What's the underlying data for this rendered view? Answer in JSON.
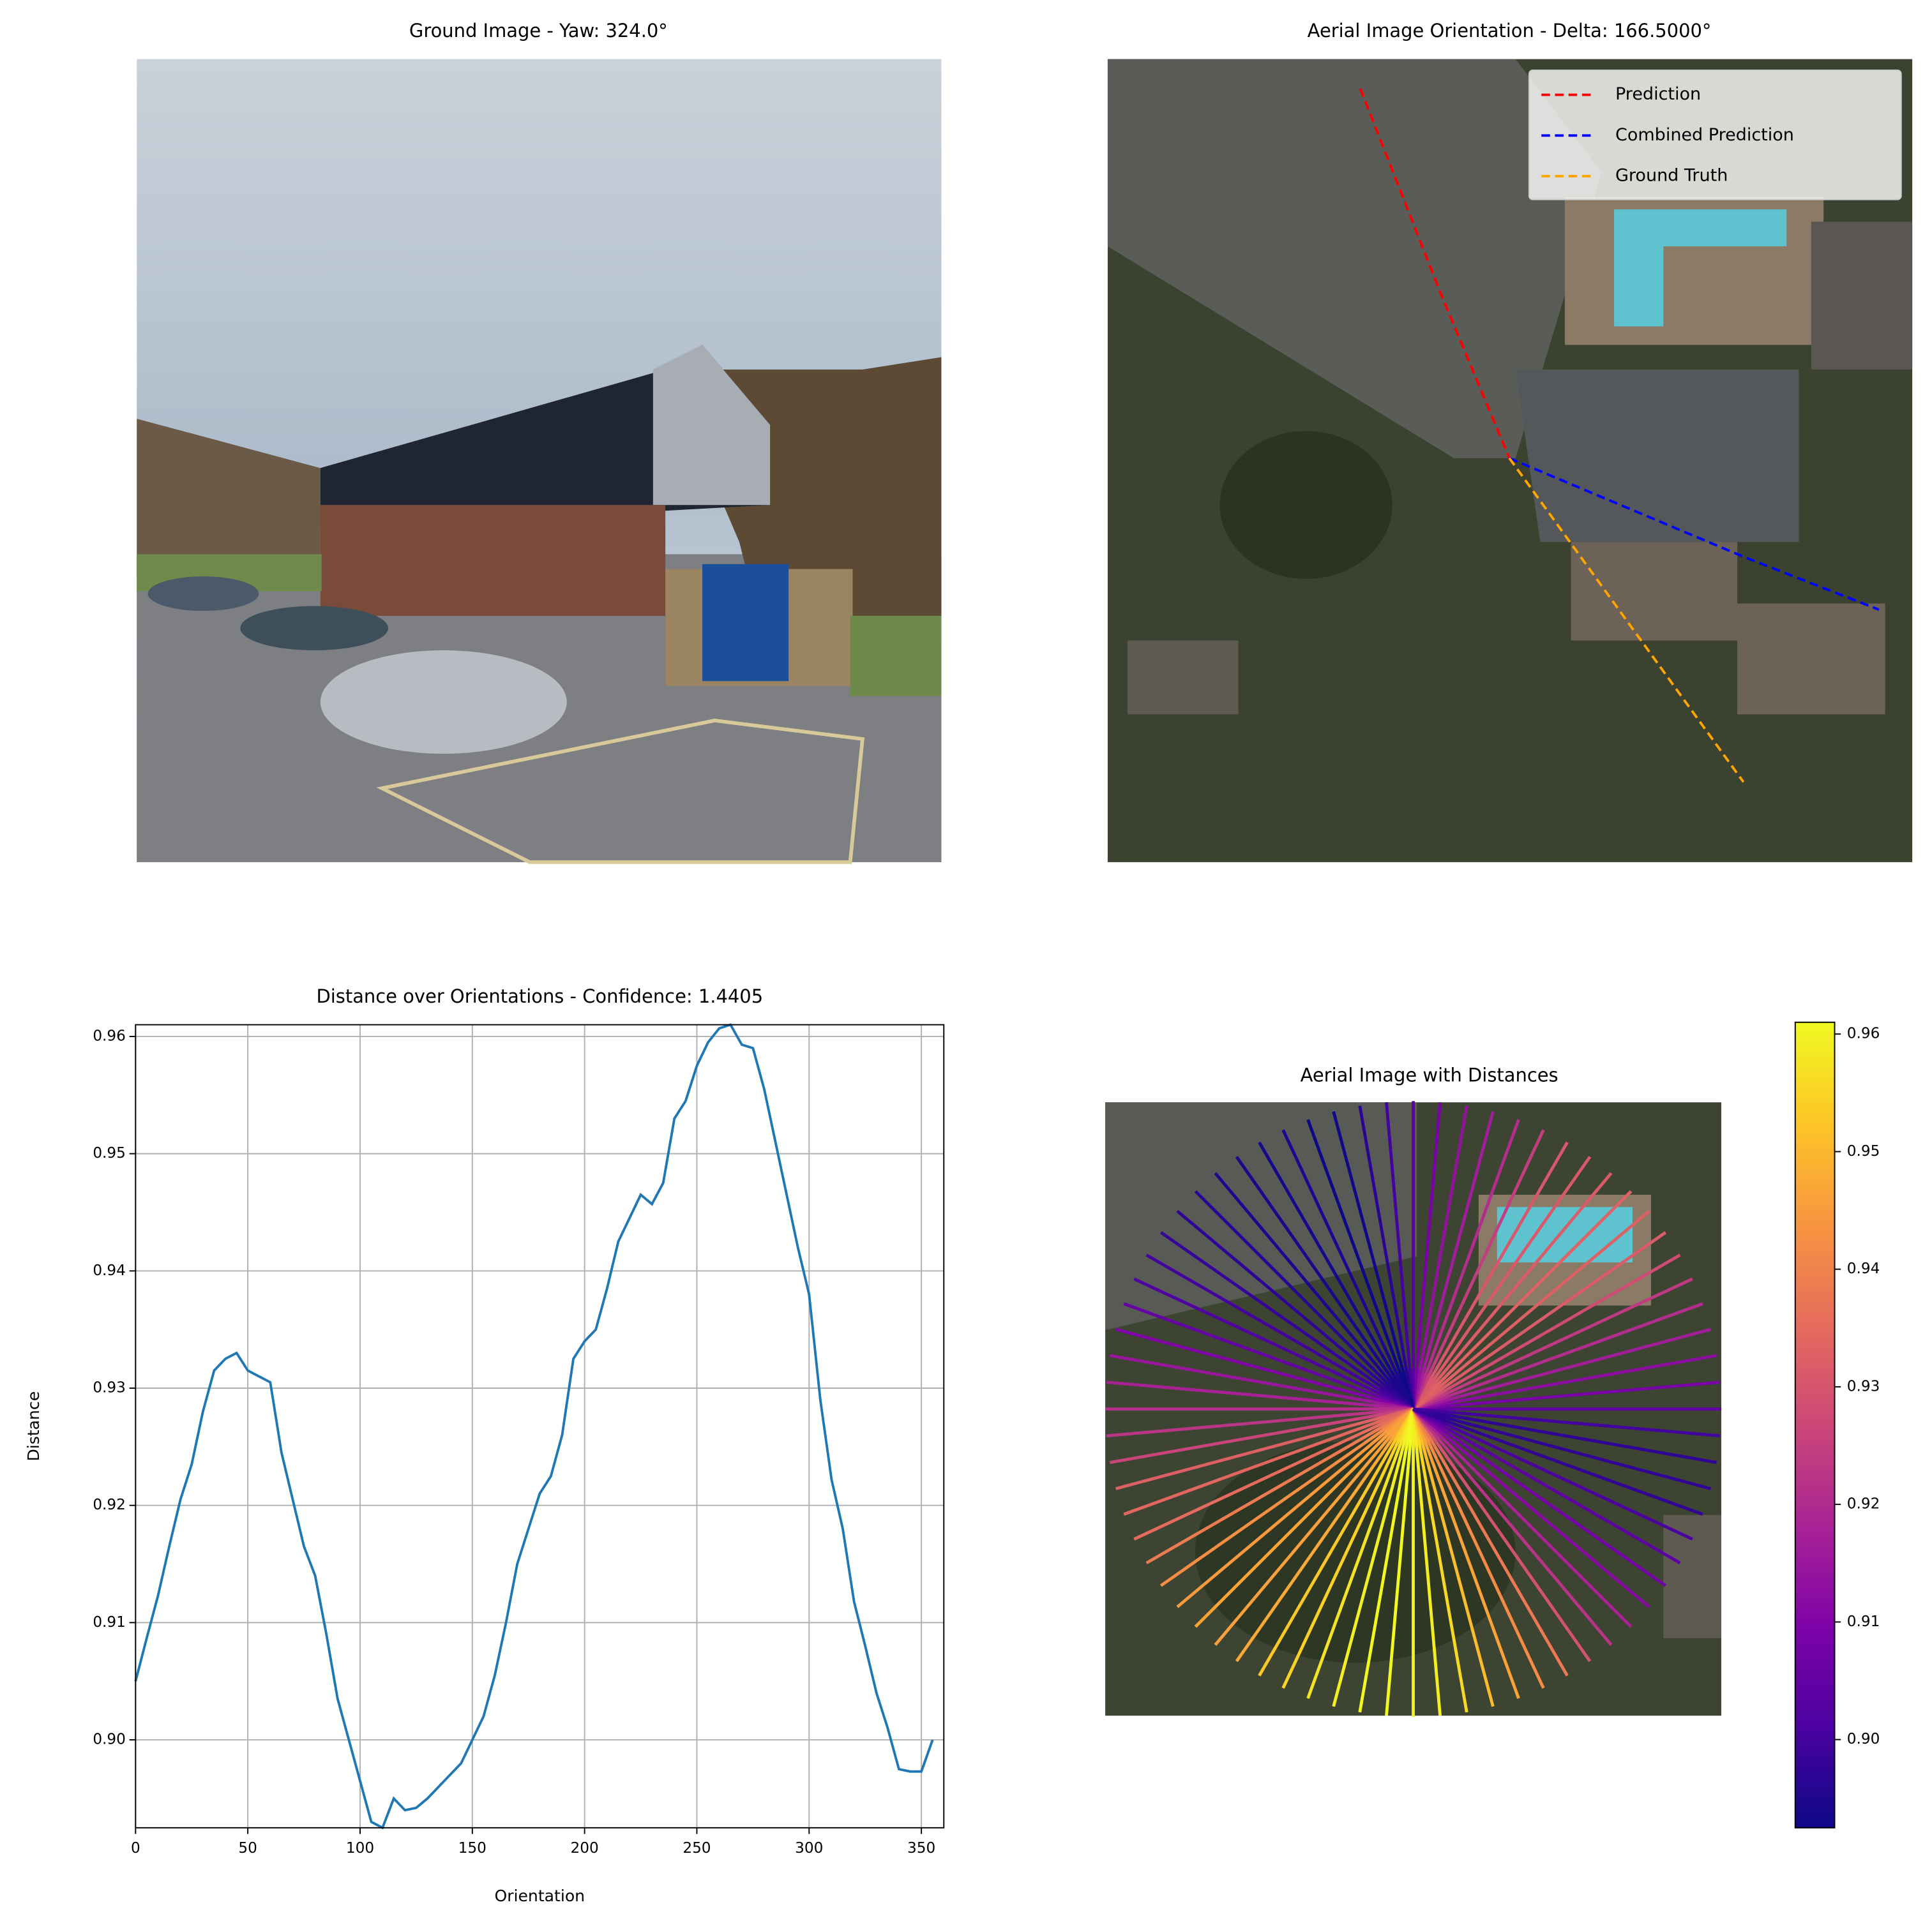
{
  "chart_data": [
    {
      "type": "image",
      "title": "Ground Image - Yaw: 324.0°"
    },
    {
      "type": "image",
      "title": "Aerial Image Orientation - Delta: 166.5000°",
      "legend": "upper right",
      "series": [
        {
          "name": "Prediction",
          "color": "#ff0000"
        },
        {
          "name": "Combined Prediction",
          "color": "#0000ff"
        },
        {
          "name": "Ground Truth",
          "color": "#ffa500"
        }
      ]
    },
    {
      "type": "line",
      "title": "Distance over Orientations - Confidence: 1.4405",
      "x_label": "Orientation",
      "y_label": "Distance",
      "x": [
        0,
        5,
        10,
        15,
        20,
        25,
        30,
        35,
        40,
        45,
        50,
        55,
        60,
        65,
        70,
        75,
        80,
        85,
        90,
        95,
        100,
        105,
        110,
        115,
        120,
        125,
        130,
        135,
        140,
        145,
        150,
        155,
        160,
        165,
        170,
        175,
        180,
        185,
        190,
        195,
        200,
        205,
        210,
        215,
        220,
        225,
        230,
        235,
        240,
        245,
        250,
        255,
        260,
        265,
        270,
        275,
        280,
        285,
        290,
        295,
        300,
        305,
        310,
        315,
        320,
        325,
        330,
        335,
        340,
        345,
        350,
        355
      ],
      "values": [
        0.905,
        0.9087,
        0.9123,
        0.9165,
        0.9205,
        0.9235,
        0.928,
        0.9315,
        0.9325,
        0.933,
        0.9315,
        0.931,
        0.9305,
        0.9245,
        0.9205,
        0.9165,
        0.914,
        0.909,
        0.9035,
        0.9,
        0.8965,
        0.893,
        0.8925,
        0.895,
        0.894,
        0.8942,
        0.895,
        0.896,
        0.897,
        0.898,
        0.9,
        0.902,
        0.9055,
        0.91,
        0.915,
        0.918,
        0.921,
        0.9225,
        0.926,
        0.9325,
        0.934,
        0.935,
        0.9385,
        0.9425,
        0.9445,
        0.9465,
        0.9457,
        0.9475,
        0.953,
        0.9545,
        0.9575,
        0.9595,
        0.9607,
        0.961,
        0.9593,
        0.959,
        0.9555,
        0.951,
        0.9465,
        0.942,
        0.938,
        0.929,
        0.9222,
        0.918,
        0.9118,
        0.908,
        0.904,
        0.901,
        0.8975,
        0.8973,
        0.8973,
        0.9
      ],
      "color": "#1f77b4",
      "xlim": [
        0,
        360
      ],
      "ylim": [
        0.8925,
        0.961
      ],
      "xticks": [
        0,
        50,
        100,
        150,
        200,
        250,
        300,
        350
      ],
      "yticks": [
        {
          "value": 0.9,
          "label": "0.90"
        },
        0.91,
        0.92,
        0.93,
        0.94,
        0.95,
        0.96
      ],
      "grid": true
    },
    {
      "type": "radial",
      "title": "Aerial Image with Distances",
      "colormap": "plasma",
      "values": [
        0.905,
        0.9087,
        0.9123,
        0.9165,
        0.9205,
        0.9235,
        0.928,
        0.9315,
        0.9325,
        0.933,
        0.9315,
        0.931,
        0.9305,
        0.9245,
        0.9205,
        0.9165,
        0.914,
        0.909,
        0.9035,
        0.9,
        0.8965,
        0.893,
        0.8925,
        0.895,
        0.894,
        0.8942,
        0.895,
        0.896,
        0.897,
        0.898,
        0.9,
        0.902,
        0.9055,
        0.91,
        0.915,
        0.918,
        0.921,
        0.9225,
        0.926,
        0.9325,
        0.934,
        0.935,
        0.9385,
        0.9425,
        0.9445,
        0.9465,
        0.9457,
        0.9475,
        0.953,
        0.9545,
        0.9575,
        0.9595,
        0.9607,
        0.961,
        0.9593,
        0.959,
        0.9555,
        0.951,
        0.9465,
        0.942,
        0.938,
        0.929,
        0.9222,
        0.918,
        0.9118,
        0.908,
        0.904,
        0.901,
        0.8975,
        0.8973,
        0.8973,
        0.9
      ],
      "clim": [
        0.8925,
        0.961
      ],
      "cticks": [
        {
          "value": 0.9,
          "label": "0.90"
        },
        0.91,
        0.92,
        0.93,
        0.94,
        0.95,
        0.96
      ]
    }
  ]
}
